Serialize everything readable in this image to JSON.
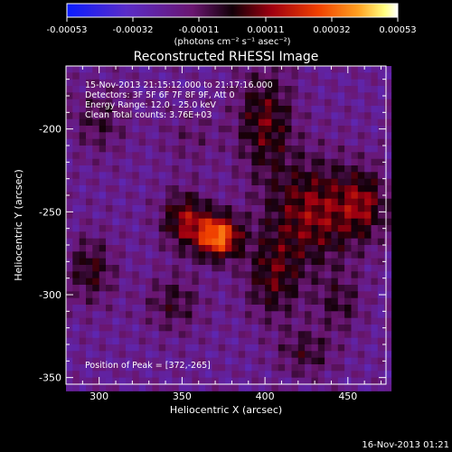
{
  "chart_data": {
    "type": "heatmap",
    "title": "Reconstructed RHESSI Image",
    "xlabel": "Heliocentric X (arcsec)",
    "ylabel": "Heliocentric Y (arcsec)",
    "xlim": [
      280,
      473
    ],
    "ylim": [
      -354,
      -162
    ],
    "x_ticks": [
      "300",
      "350",
      "400",
      "450"
    ],
    "x_tick_values": [
      300,
      350,
      400,
      450
    ],
    "y_ticks": [
      "-200",
      "-250",
      "-300",
      "-350"
    ],
    "y_tick_values": [
      -200,
      -250,
      -300,
      -350
    ],
    "colorbar": {
      "ticks": [
        "-0.00053",
        "-0.00032",
        "-0.00011",
        "0.00011",
        "0.00032",
        "0.00053"
      ],
      "min": -0.00053,
      "max": 0.00053,
      "colormap": "blue-purple-red-orange-yellow-white",
      "unit_label": "(photons cm⁻² s⁻¹ asec⁻²)"
    },
    "info_lines": [
      "15-Nov-2013 21:15:12.000 to 21:17:16.000",
      "Detectors: 3F 5F 6F 7F 8F 9F, Att 0",
      "Energy Range: 12.0 - 25.0 keV",
      "Clean    Total counts: 3.76E+03"
    ],
    "peak_label": "Position of Peak = [372,-265]",
    "peak_position": [
      372,
      -265
    ],
    "sources": [
      {
        "x": 372,
        "y": -265,
        "amp": 0.00053,
        "sx": 9,
        "sy": 9
      },
      {
        "x": 352,
        "y": -255,
        "amp": 0.0003,
        "sx": 10,
        "sy": 12
      },
      {
        "x": 430,
        "y": -250,
        "amp": 0.0003,
        "sx": 20,
        "sy": 22
      },
      {
        "x": 460,
        "y": -245,
        "amp": 0.00022,
        "sx": 10,
        "sy": 14
      },
      {
        "x": 400,
        "y": -195,
        "amp": 0.00025,
        "sx": 12,
        "sy": 22
      },
      {
        "x": 405,
        "y": -290,
        "amp": 0.00022,
        "sx": 12,
        "sy": 18
      },
      {
        "x": 295,
        "y": -285,
        "amp": 0.0002,
        "sx": 10,
        "sy": 14
      },
      {
        "x": 300,
        "y": -195,
        "amp": 0.00014,
        "sx": 12,
        "sy": 14
      },
      {
        "x": 345,
        "y": -305,
        "amp": 0.00016,
        "sx": 12,
        "sy": 12
      },
      {
        "x": 445,
        "y": -305,
        "amp": 0.00015,
        "sx": 10,
        "sy": 12
      },
      {
        "x": 425,
        "y": -335,
        "amp": 0.00016,
        "sx": 12,
        "sy": 10
      },
      {
        "x": 355,
        "y": -205,
        "amp": 8e-05,
        "sx": 12,
        "sy": 12
      }
    ],
    "background": -0.0002
  },
  "footer": {
    "timestamp": "16-Nov-2013 01:21"
  }
}
